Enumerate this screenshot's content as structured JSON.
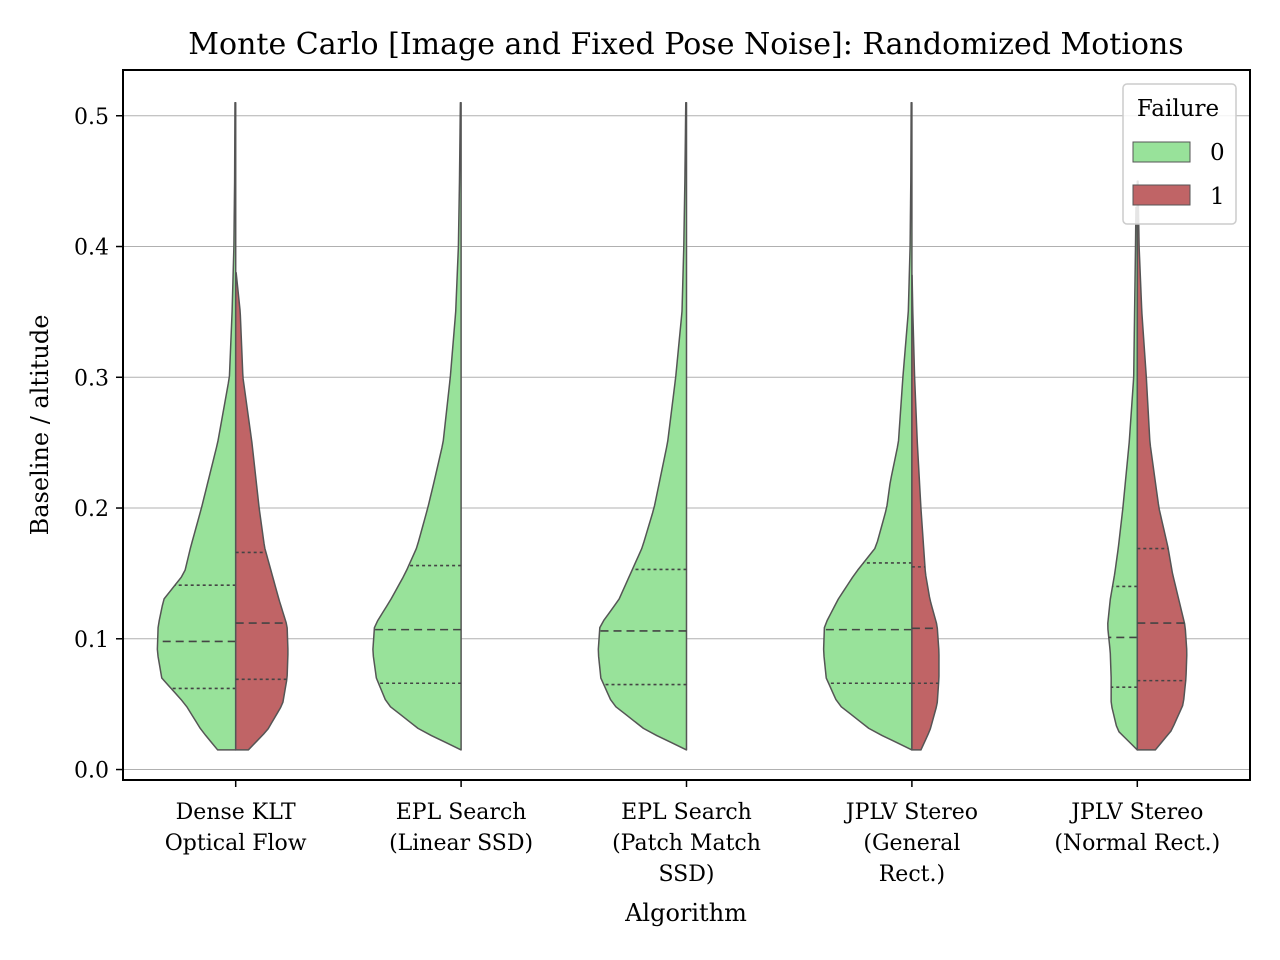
{
  "chart_data": {
    "type": "violin",
    "title": "Monte Carlo [Image and Fixed Pose Noise]: Randomized Motions",
    "xlabel": "Algorithm",
    "ylabel": "Baseline / altitude",
    "ylim": [
      -0.008,
      0.535
    ],
    "yticks": [
      0.0,
      0.1,
      0.2,
      0.3,
      0.4,
      0.5
    ],
    "ytick_labels": [
      "0.0",
      "0.1",
      "0.2",
      "0.3",
      "0.4",
      "0.5"
    ],
    "grid": "horizontal",
    "split": true,
    "inner": "quartile",
    "categories": [
      [
        "Dense KLT",
        "Optical Flow"
      ],
      [
        "EPL Search",
        "(Linear SSD)"
      ],
      [
        "EPL Search",
        "(Patch Match",
        "SSD)"
      ],
      [
        "JPLV Stereo",
        "(General",
        "Rect.)"
      ],
      [
        "JPLV Stereo",
        "(Normal Rect.)"
      ]
    ],
    "legend": {
      "title": "Failure",
      "position": "top-right",
      "entries": [
        {
          "label": "0",
          "color": "#98e29a"
        },
        {
          "label": "1",
          "color": "#c06466"
        }
      ]
    },
    "series": [
      {
        "name": "0",
        "color": "#98e29a",
        "violins": [
          {
            "profile": [
              [
                0.015,
                0.2
              ],
              [
                0.03,
                0.38
              ],
              [
                0.05,
                0.56
              ],
              [
                0.07,
                0.82
              ],
              [
                0.09,
                0.87
              ],
              [
                0.11,
                0.86
              ],
              [
                0.13,
                0.8
              ],
              [
                0.15,
                0.57
              ],
              [
                0.17,
                0.5
              ],
              [
                0.2,
                0.38
              ],
              [
                0.25,
                0.2
              ],
              [
                0.3,
                0.07
              ],
              [
                0.35,
                0.04
              ],
              [
                0.4,
                0.02
              ],
              [
                0.45,
                0.012
              ],
              [
                0.51,
                0.008
              ]
            ],
            "q1": 0.062,
            "median": 0.098,
            "q3": 0.141
          },
          {
            "profile": [
              [
                0.015,
                0.0
              ],
              [
                0.03,
                0.45
              ],
              [
                0.05,
                0.82
              ],
              [
                0.07,
                0.94
              ],
              [
                0.09,
                0.98
              ],
              [
                0.11,
                0.96
              ],
              [
                0.13,
                0.78
              ],
              [
                0.15,
                0.62
              ],
              [
                0.17,
                0.49
              ],
              [
                0.2,
                0.37
              ],
              [
                0.22,
                0.3
              ],
              [
                0.25,
                0.2
              ],
              [
                0.3,
                0.12
              ],
              [
                0.35,
                0.06
              ],
              [
                0.4,
                0.03
              ],
              [
                0.45,
                0.018
              ],
              [
                0.51,
                0.008
              ]
            ],
            "q1": 0.066,
            "median": 0.107,
            "q3": 0.156
          },
          {
            "profile": [
              [
                0.015,
                0.0
              ],
              [
                0.03,
                0.45
              ],
              [
                0.05,
                0.82
              ],
              [
                0.07,
                0.95
              ],
              [
                0.09,
                0.98
              ],
              [
                0.11,
                0.96
              ],
              [
                0.13,
                0.75
              ],
              [
                0.15,
                0.62
              ],
              [
                0.17,
                0.49
              ],
              [
                0.2,
                0.36
              ],
              [
                0.22,
                0.3
              ],
              [
                0.25,
                0.21
              ],
              [
                0.3,
                0.12
              ],
              [
                0.35,
                0.05
              ],
              [
                0.4,
                0.03
              ],
              [
                0.45,
                0.018
              ],
              [
                0.51,
                0.008
              ]
            ],
            "q1": 0.065,
            "median": 0.106,
            "q3": 0.153
          },
          {
            "profile": [
              [
                0.015,
                0.0
              ],
              [
                0.03,
                0.45
              ],
              [
                0.05,
                0.82
              ],
              [
                0.07,
                0.95
              ],
              [
                0.09,
                0.98
              ],
              [
                0.11,
                0.97
              ],
              [
                0.13,
                0.82
              ],
              [
                0.15,
                0.63
              ],
              [
                0.17,
                0.4
              ],
              [
                0.2,
                0.28
              ],
              [
                0.22,
                0.24
              ],
              [
                0.25,
                0.15
              ],
              [
                0.3,
                0.1
              ],
              [
                0.35,
                0.04
              ],
              [
                0.4,
                0.02
              ],
              [
                0.45,
                0.012
              ],
              [
                0.51,
                0.008
              ]
            ],
            "q1": 0.066,
            "median": 0.107,
            "q3": 0.158
          },
          {
            "profile": [
              [
                0.015,
                0.0
              ],
              [
                0.03,
                0.22
              ],
              [
                0.05,
                0.29
              ],
              [
                0.07,
                0.29
              ],
              [
                0.09,
                0.3
              ],
              [
                0.11,
                0.33
              ],
              [
                0.13,
                0.3
              ],
              [
                0.15,
                0.25
              ],
              [
                0.17,
                0.21
              ],
              [
                0.2,
                0.16
              ],
              [
                0.25,
                0.09
              ],
              [
                0.3,
                0.04
              ],
              [
                0.35,
                0.03
              ],
              [
                0.4,
                0.02
              ],
              [
                0.43,
                0.015
              ]
            ],
            "q1": 0.063,
            "median": 0.101,
            "q3": 0.14
          }
        ]
      },
      {
        "name": "1",
        "color": "#c06466",
        "violins": [
          {
            "profile": [
              [
                0.015,
                0.14
              ],
              [
                0.03,
                0.35
              ],
              [
                0.05,
                0.52
              ],
              [
                0.07,
                0.57
              ],
              [
                0.09,
                0.58
              ],
              [
                0.11,
                0.57
              ],
              [
                0.13,
                0.48
              ],
              [
                0.15,
                0.4
              ],
              [
                0.17,
                0.32
              ],
              [
                0.2,
                0.26
              ],
              [
                0.25,
                0.18
              ],
              [
                0.3,
                0.08
              ],
              [
                0.35,
                0.05
              ],
              [
                0.38,
                0.005
              ]
            ],
            "q1": 0.069,
            "median": 0.112,
            "q3": 0.166
          },
          null,
          null,
          {
            "profile": [
              [
                0.015,
                0.1
              ],
              [
                0.03,
                0.2
              ],
              [
                0.05,
                0.28
              ],
              [
                0.07,
                0.3
              ],
              [
                0.09,
                0.3
              ],
              [
                0.11,
                0.28
              ],
              [
                0.13,
                0.2
              ],
              [
                0.15,
                0.15
              ],
              [
                0.17,
                0.13
              ],
              [
                0.2,
                0.1
              ],
              [
                0.25,
                0.06
              ],
              [
                0.3,
                0.03
              ],
              [
                0.35,
                0.01
              ],
              [
                0.378,
                0.002
              ]
            ],
            "q1": 0.066,
            "median": 0.108,
            "q3": 0.155
          },
          {
            "profile": [
              [
                0.015,
                0.2
              ],
              [
                0.03,
                0.38
              ],
              [
                0.05,
                0.51
              ],
              [
                0.07,
                0.54
              ],
              [
                0.09,
                0.55
              ],
              [
                0.11,
                0.53
              ],
              [
                0.13,
                0.46
              ],
              [
                0.15,
                0.39
              ],
              [
                0.17,
                0.34
              ],
              [
                0.2,
                0.24
              ],
              [
                0.25,
                0.14
              ],
              [
                0.3,
                0.1
              ],
              [
                0.35,
                0.05
              ],
              [
                0.4,
                0.02
              ],
              [
                0.45,
                0.008
              ]
            ],
            "q1": 0.068,
            "median": 0.112,
            "q3": 0.169
          }
        ]
      }
    ]
  }
}
